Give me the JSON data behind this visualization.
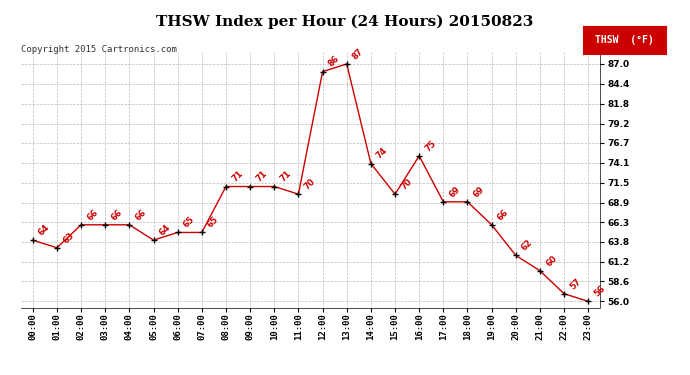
{
  "title": "THSW Index per Hour (24 Hours) 20150823",
  "copyright": "Copyright 2015 Cartronics.com",
  "legend_label": "THSW  (°F)",
  "hours": [
    0,
    1,
    2,
    3,
    4,
    5,
    6,
    7,
    8,
    9,
    10,
    11,
    12,
    13,
    14,
    15,
    16,
    17,
    18,
    19,
    20,
    21,
    22,
    23
  ],
  "values": [
    64,
    63,
    66,
    66,
    66,
    64,
    65,
    65,
    71,
    71,
    71,
    70,
    86,
    87,
    74,
    70,
    75,
    69,
    69,
    66,
    62,
    60,
    57,
    56
  ],
  "line_color": "#cc0000",
  "marker_color": "#000000",
  "background_color": "#ffffff",
  "grid_color": "#bbbbbb",
  "yticks": [
    56.0,
    58.6,
    61.2,
    63.8,
    66.3,
    68.9,
    71.5,
    74.1,
    76.7,
    79.2,
    81.8,
    84.4,
    87.0
  ],
  "ylim": [
    55.2,
    88.5
  ],
  "title_fontsize": 11,
  "axis_fontsize": 6.5,
  "label_fontsize": 6.5,
  "copyright_fontsize": 6.5
}
